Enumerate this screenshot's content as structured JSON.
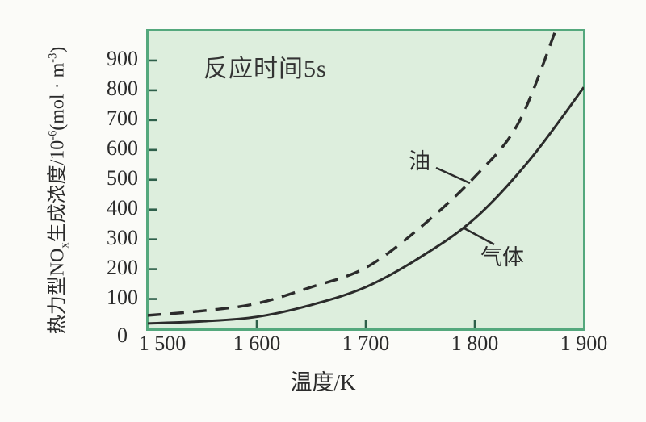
{
  "chart_data": {
    "type": "line",
    "annotation": "反应时间5s",
    "xlabel": "温度/K",
    "ylabel_text": "热力型NOx生成浓度/10-6(mol · m-3)",
    "ylabel_parts": [
      {
        "t": "热力型NO"
      },
      {
        "t": "x",
        "s": "sub"
      },
      {
        "t": "生成浓度/10"
      },
      {
        "t": "-6",
        "s": "sup"
      },
      {
        "t": "(mol · m"
      },
      {
        "t": "-3",
        "s": "sup"
      },
      {
        "t": ")"
      }
    ],
    "xlim": [
      1500,
      1900
    ],
    "ylim": [
      0,
      1000
    ],
    "grid": false,
    "legend": "inline-annotations",
    "x_ticks": [
      {
        "value": 1500,
        "label": "1 500"
      },
      {
        "value": 1600,
        "label": "1 600"
      },
      {
        "value": 1700,
        "label": "1 700"
      },
      {
        "value": 1800,
        "label": "1 800"
      },
      {
        "value": 1900,
        "label": "1 900"
      }
    ],
    "y_ticks": [
      {
        "value": 0,
        "label": "0"
      },
      {
        "value": 100,
        "label": "100"
      },
      {
        "value": 200,
        "label": "200"
      },
      {
        "value": 300,
        "label": "300"
      },
      {
        "value": 400,
        "label": "400"
      },
      {
        "value": 500,
        "label": "500"
      },
      {
        "value": 600,
        "label": "600"
      },
      {
        "value": 700,
        "label": "700"
      },
      {
        "value": 800,
        "label": "800"
      },
      {
        "value": 900,
        "label": "900"
      }
    ],
    "series": [
      {
        "name": "气体",
        "line_style": "solid",
        "points": [
          [
            1500,
            18
          ],
          [
            1550,
            25
          ],
          [
            1600,
            40
          ],
          [
            1650,
            80
          ],
          [
            1700,
            140
          ],
          [
            1750,
            240
          ],
          [
            1800,
            370
          ],
          [
            1850,
            565
          ],
          [
            1900,
            810
          ]
        ]
      },
      {
        "name": "油",
        "line_style": "dashed",
        "points": [
          [
            1500,
            45
          ],
          [
            1550,
            60
          ],
          [
            1600,
            85
          ],
          [
            1650,
            140
          ],
          [
            1700,
            205
          ],
          [
            1750,
            340
          ],
          [
            1800,
            510
          ],
          [
            1840,
            690
          ],
          [
            1875,
            1010
          ]
        ]
      }
    ],
    "colors": {
      "plot_background": "#ddeedd",
      "plot_border": "#54a87d",
      "tick_mark": "#2e5f4a",
      "curve": "#2b2b2b",
      "text": "#333333",
      "page_background": "#fbfbf8"
    }
  }
}
